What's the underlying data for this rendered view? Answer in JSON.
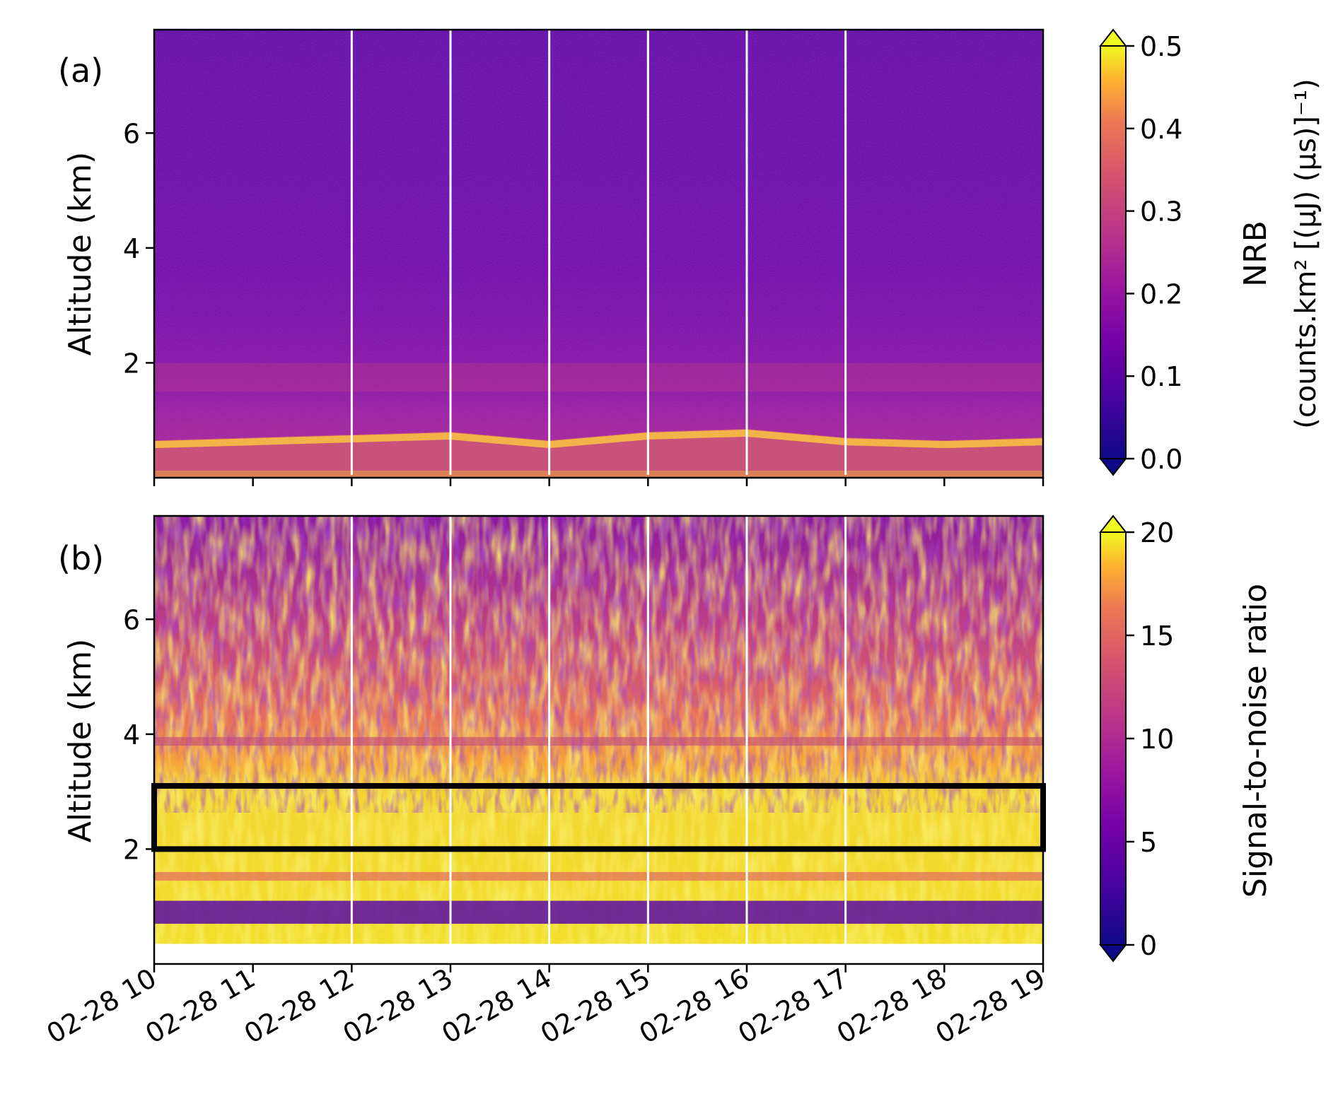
{
  "figure": {
    "panels": [
      {
        "id": "a",
        "label": "(a)",
        "ylabel": "Altitude (km)",
        "colorbar_label": [
          "NRB",
          "(counts.km² [(μJ) (μs)]⁻¹)"
        ]
      },
      {
        "id": "b",
        "label": "(b)",
        "ylabel": "Altitude (km)",
        "colorbar_label": [
          "Signal-to-noise ratio"
        ]
      }
    ],
    "xtick_labels": [
      "02-28 10",
      "02-28 11",
      "02-28 12",
      "02-28 13",
      "02-28 14",
      "02-28 15",
      "02-28 16",
      "02-28 17",
      "02-28 18",
      "02-28 19"
    ]
  },
  "chart_data": [
    {
      "type": "heatmap",
      "panel": "(a)",
      "quantity": "NRB",
      "xlabel": "",
      "ylabel": "Altitude (km)",
      "x_range": [
        "02-28 10",
        "02-28 19"
      ],
      "y_range_km": [
        0,
        7.8
      ],
      "yticks": [
        2,
        4,
        6
      ],
      "colorbar": {
        "label": "NRB (counts.km² [(μJ) (μs)]⁻¹)",
        "min": 0.0,
        "max": 0.5,
        "ticks": [
          0.0,
          0.1,
          0.2,
          0.3,
          0.4,
          0.5
        ],
        "colormap": "plasma",
        "extend": "both"
      },
      "boundary_layer_top_km": [
        {
          "time": "02-28 10",
          "alt": 0.65
        },
        {
          "time": "02-28 11",
          "alt": 0.7
        },
        {
          "time": "02-28 12",
          "alt": 0.75
        },
        {
          "time": "02-28 13",
          "alt": 0.8
        },
        {
          "time": "02-28 14",
          "alt": 0.65
        },
        {
          "time": "02-28 15",
          "alt": 0.8
        },
        {
          "time": "02-28 16",
          "alt": 0.85
        },
        {
          "time": "02-28 17",
          "alt": 0.7
        },
        {
          "time": "02-28 18",
          "alt": 0.65
        },
        {
          "time": "02-28 19",
          "alt": 0.7
        }
      ],
      "hourly_lines_at": [
        "02-28 12",
        "02-28 13",
        "02-28 14",
        "02-28 15",
        "02-28 16",
        "02-28 17"
      ]
    },
    {
      "type": "heatmap",
      "panel": "(b)",
      "quantity": "Signal-to-noise ratio",
      "xlabel": "",
      "ylabel": "Altitude (km)",
      "x_range": [
        "02-28 10",
        "02-28 19"
      ],
      "y_range_km": [
        0,
        7.8
      ],
      "yticks": [
        2,
        4,
        6
      ],
      "colorbar": {
        "label": "Signal-to-noise ratio",
        "min": 0,
        "max": 20,
        "ticks": [
          0,
          5,
          10,
          15,
          20
        ],
        "colormap": "plasma",
        "extend": "both"
      },
      "highlight_box": {
        "x_from": "02-28 10",
        "x_to": "02-28 19",
        "alt_from_km": 2.0,
        "alt_to_km": 3.1
      },
      "hourly_lines_at": [
        "02-28 12",
        "02-28 13",
        "02-28 14",
        "02-28 15",
        "02-28 16",
        "02-28 17"
      ]
    }
  ]
}
